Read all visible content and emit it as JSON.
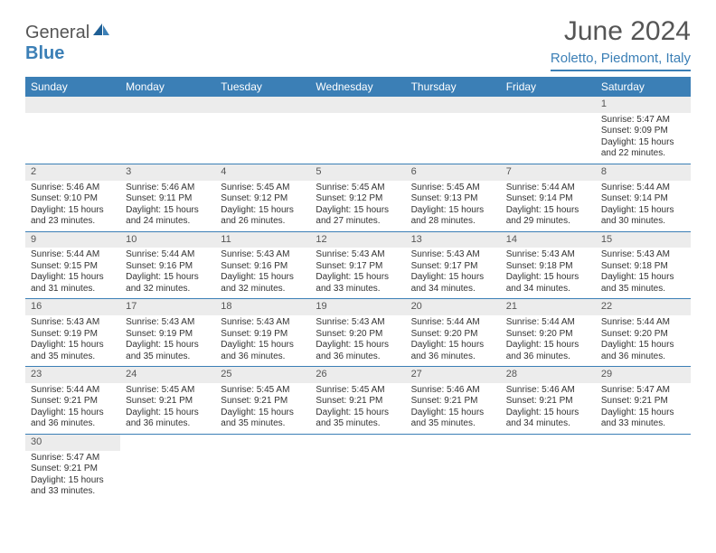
{
  "logo": {
    "text1": "General",
    "text2": "Blue"
  },
  "title": "June 2024",
  "location": "Roletto, Piedmont, Italy",
  "colors": {
    "header_bg": "#3b7fb6",
    "header_text": "#ffffff",
    "daynum_bg": "#ececec",
    "border": "#3b7fb6",
    "title_color": "#555555"
  },
  "weekdays": [
    "Sunday",
    "Monday",
    "Tuesday",
    "Wednesday",
    "Thursday",
    "Friday",
    "Saturday"
  ],
  "weeks": [
    [
      null,
      null,
      null,
      null,
      null,
      null,
      {
        "n": "1",
        "sr": "Sunrise: 5:47 AM",
        "ss": "Sunset: 9:09 PM",
        "d1": "Daylight: 15 hours",
        "d2": "and 22 minutes."
      }
    ],
    [
      {
        "n": "2",
        "sr": "Sunrise: 5:46 AM",
        "ss": "Sunset: 9:10 PM",
        "d1": "Daylight: 15 hours",
        "d2": "and 23 minutes."
      },
      {
        "n": "3",
        "sr": "Sunrise: 5:46 AM",
        "ss": "Sunset: 9:11 PM",
        "d1": "Daylight: 15 hours",
        "d2": "and 24 minutes."
      },
      {
        "n": "4",
        "sr": "Sunrise: 5:45 AM",
        "ss": "Sunset: 9:12 PM",
        "d1": "Daylight: 15 hours",
        "d2": "and 26 minutes."
      },
      {
        "n": "5",
        "sr": "Sunrise: 5:45 AM",
        "ss": "Sunset: 9:12 PM",
        "d1": "Daylight: 15 hours",
        "d2": "and 27 minutes."
      },
      {
        "n": "6",
        "sr": "Sunrise: 5:45 AM",
        "ss": "Sunset: 9:13 PM",
        "d1": "Daylight: 15 hours",
        "d2": "and 28 minutes."
      },
      {
        "n": "7",
        "sr": "Sunrise: 5:44 AM",
        "ss": "Sunset: 9:14 PM",
        "d1": "Daylight: 15 hours",
        "d2": "and 29 minutes."
      },
      {
        "n": "8",
        "sr": "Sunrise: 5:44 AM",
        "ss": "Sunset: 9:14 PM",
        "d1": "Daylight: 15 hours",
        "d2": "and 30 minutes."
      }
    ],
    [
      {
        "n": "9",
        "sr": "Sunrise: 5:44 AM",
        "ss": "Sunset: 9:15 PM",
        "d1": "Daylight: 15 hours",
        "d2": "and 31 minutes."
      },
      {
        "n": "10",
        "sr": "Sunrise: 5:44 AM",
        "ss": "Sunset: 9:16 PM",
        "d1": "Daylight: 15 hours",
        "d2": "and 32 minutes."
      },
      {
        "n": "11",
        "sr": "Sunrise: 5:43 AM",
        "ss": "Sunset: 9:16 PM",
        "d1": "Daylight: 15 hours",
        "d2": "and 32 minutes."
      },
      {
        "n": "12",
        "sr": "Sunrise: 5:43 AM",
        "ss": "Sunset: 9:17 PM",
        "d1": "Daylight: 15 hours",
        "d2": "and 33 minutes."
      },
      {
        "n": "13",
        "sr": "Sunrise: 5:43 AM",
        "ss": "Sunset: 9:17 PM",
        "d1": "Daylight: 15 hours",
        "d2": "and 34 minutes."
      },
      {
        "n": "14",
        "sr": "Sunrise: 5:43 AM",
        "ss": "Sunset: 9:18 PM",
        "d1": "Daylight: 15 hours",
        "d2": "and 34 minutes."
      },
      {
        "n": "15",
        "sr": "Sunrise: 5:43 AM",
        "ss": "Sunset: 9:18 PM",
        "d1": "Daylight: 15 hours",
        "d2": "and 35 minutes."
      }
    ],
    [
      {
        "n": "16",
        "sr": "Sunrise: 5:43 AM",
        "ss": "Sunset: 9:19 PM",
        "d1": "Daylight: 15 hours",
        "d2": "and 35 minutes."
      },
      {
        "n": "17",
        "sr": "Sunrise: 5:43 AM",
        "ss": "Sunset: 9:19 PM",
        "d1": "Daylight: 15 hours",
        "d2": "and 35 minutes."
      },
      {
        "n": "18",
        "sr": "Sunrise: 5:43 AM",
        "ss": "Sunset: 9:19 PM",
        "d1": "Daylight: 15 hours",
        "d2": "and 36 minutes."
      },
      {
        "n": "19",
        "sr": "Sunrise: 5:43 AM",
        "ss": "Sunset: 9:20 PM",
        "d1": "Daylight: 15 hours",
        "d2": "and 36 minutes."
      },
      {
        "n": "20",
        "sr": "Sunrise: 5:44 AM",
        "ss": "Sunset: 9:20 PM",
        "d1": "Daylight: 15 hours",
        "d2": "and 36 minutes."
      },
      {
        "n": "21",
        "sr": "Sunrise: 5:44 AM",
        "ss": "Sunset: 9:20 PM",
        "d1": "Daylight: 15 hours",
        "d2": "and 36 minutes."
      },
      {
        "n": "22",
        "sr": "Sunrise: 5:44 AM",
        "ss": "Sunset: 9:20 PM",
        "d1": "Daylight: 15 hours",
        "d2": "and 36 minutes."
      }
    ],
    [
      {
        "n": "23",
        "sr": "Sunrise: 5:44 AM",
        "ss": "Sunset: 9:21 PM",
        "d1": "Daylight: 15 hours",
        "d2": "and 36 minutes."
      },
      {
        "n": "24",
        "sr": "Sunrise: 5:45 AM",
        "ss": "Sunset: 9:21 PM",
        "d1": "Daylight: 15 hours",
        "d2": "and 36 minutes."
      },
      {
        "n": "25",
        "sr": "Sunrise: 5:45 AM",
        "ss": "Sunset: 9:21 PM",
        "d1": "Daylight: 15 hours",
        "d2": "and 35 minutes."
      },
      {
        "n": "26",
        "sr": "Sunrise: 5:45 AM",
        "ss": "Sunset: 9:21 PM",
        "d1": "Daylight: 15 hours",
        "d2": "and 35 minutes."
      },
      {
        "n": "27",
        "sr": "Sunrise: 5:46 AM",
        "ss": "Sunset: 9:21 PM",
        "d1": "Daylight: 15 hours",
        "d2": "and 35 minutes."
      },
      {
        "n": "28",
        "sr": "Sunrise: 5:46 AM",
        "ss": "Sunset: 9:21 PM",
        "d1": "Daylight: 15 hours",
        "d2": "and 34 minutes."
      },
      {
        "n": "29",
        "sr": "Sunrise: 5:47 AM",
        "ss": "Sunset: 9:21 PM",
        "d1": "Daylight: 15 hours",
        "d2": "and 33 minutes."
      }
    ],
    [
      {
        "n": "30",
        "sr": "Sunrise: 5:47 AM",
        "ss": "Sunset: 9:21 PM",
        "d1": "Daylight: 15 hours",
        "d2": "and 33 minutes."
      },
      null,
      null,
      null,
      null,
      null,
      null
    ]
  ]
}
